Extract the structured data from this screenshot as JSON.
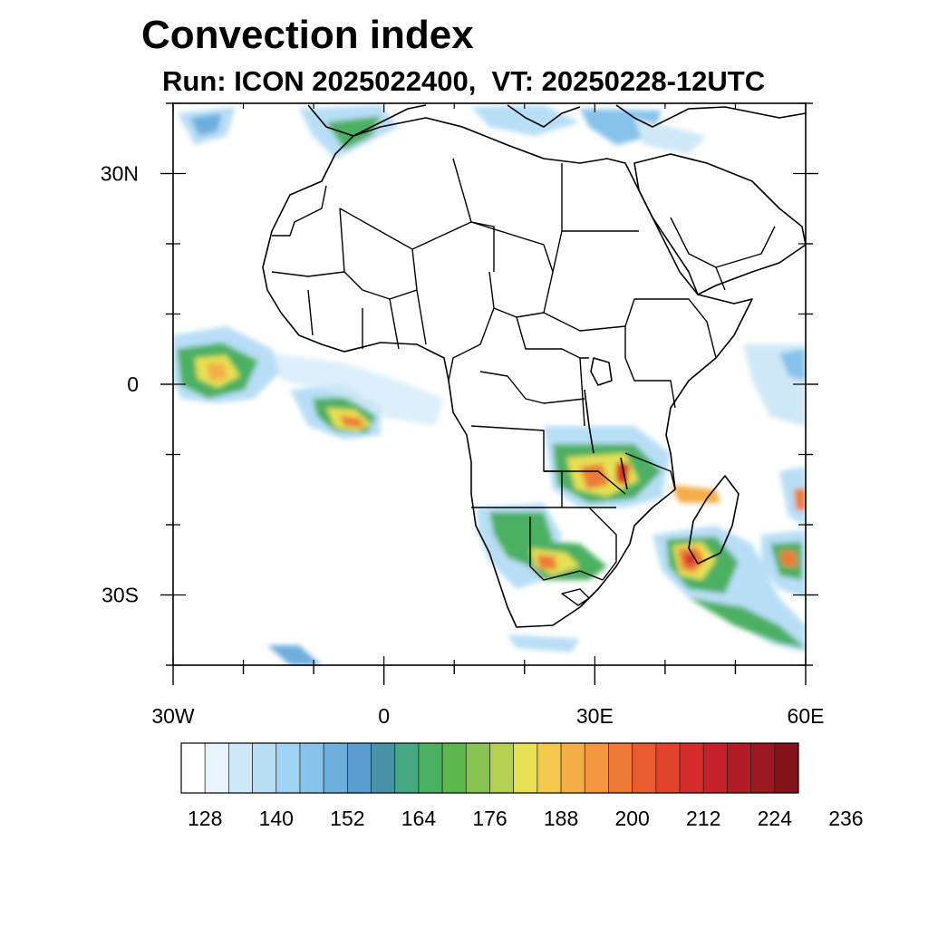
{
  "title": "Convection index",
  "subtitle": "Run: ICON 2025022400,  VT: 20250228-12UTC",
  "axes": {
    "y_ticks": [
      {
        "label": "30N",
        "lat": 30
      },
      {
        "label": "0",
        "lat": 0
      },
      {
        "label": "30S",
        "lat": -30
      }
    ],
    "x_ticks": [
      {
        "label": "30W",
        "lon": -30
      },
      {
        "label": "0",
        "lon": 0
      },
      {
        "label": "30E",
        "lon": 30
      },
      {
        "label": "60E",
        "lon": 60
      }
    ],
    "lon_range": [
      -30,
      60
    ],
    "lat_range": [
      -40,
      40
    ]
  },
  "colorbar": {
    "labels": [
      "128",
      "140",
      "152",
      "164",
      "176",
      "188",
      "200",
      "212",
      "224",
      "236"
    ],
    "colors": [
      "#ffffff",
      "#e8f4fc",
      "#cfe8f8",
      "#b8def6",
      "#9fd3f4",
      "#86c2ea",
      "#6eaede",
      "#5a9bd0",
      "#4a92a8",
      "#45a880",
      "#4cb062",
      "#5cb84a",
      "#88c452",
      "#b4d052",
      "#e6e052",
      "#f2c84e",
      "#f4ae48",
      "#f49540",
      "#ee7a38",
      "#e85c30",
      "#e0442c",
      "#d42c2a",
      "#c42228",
      "#b01c24",
      "#9c1820",
      "#841418"
    ],
    "first_value": 128,
    "step": 4
  },
  "map_colors": {
    "light": "#b8def6",
    "medium": "#6eaede",
    "green": "#4cb062",
    "yellow": "#e6e052",
    "orange": "#f4ae48",
    "red": "#d42c2a"
  }
}
